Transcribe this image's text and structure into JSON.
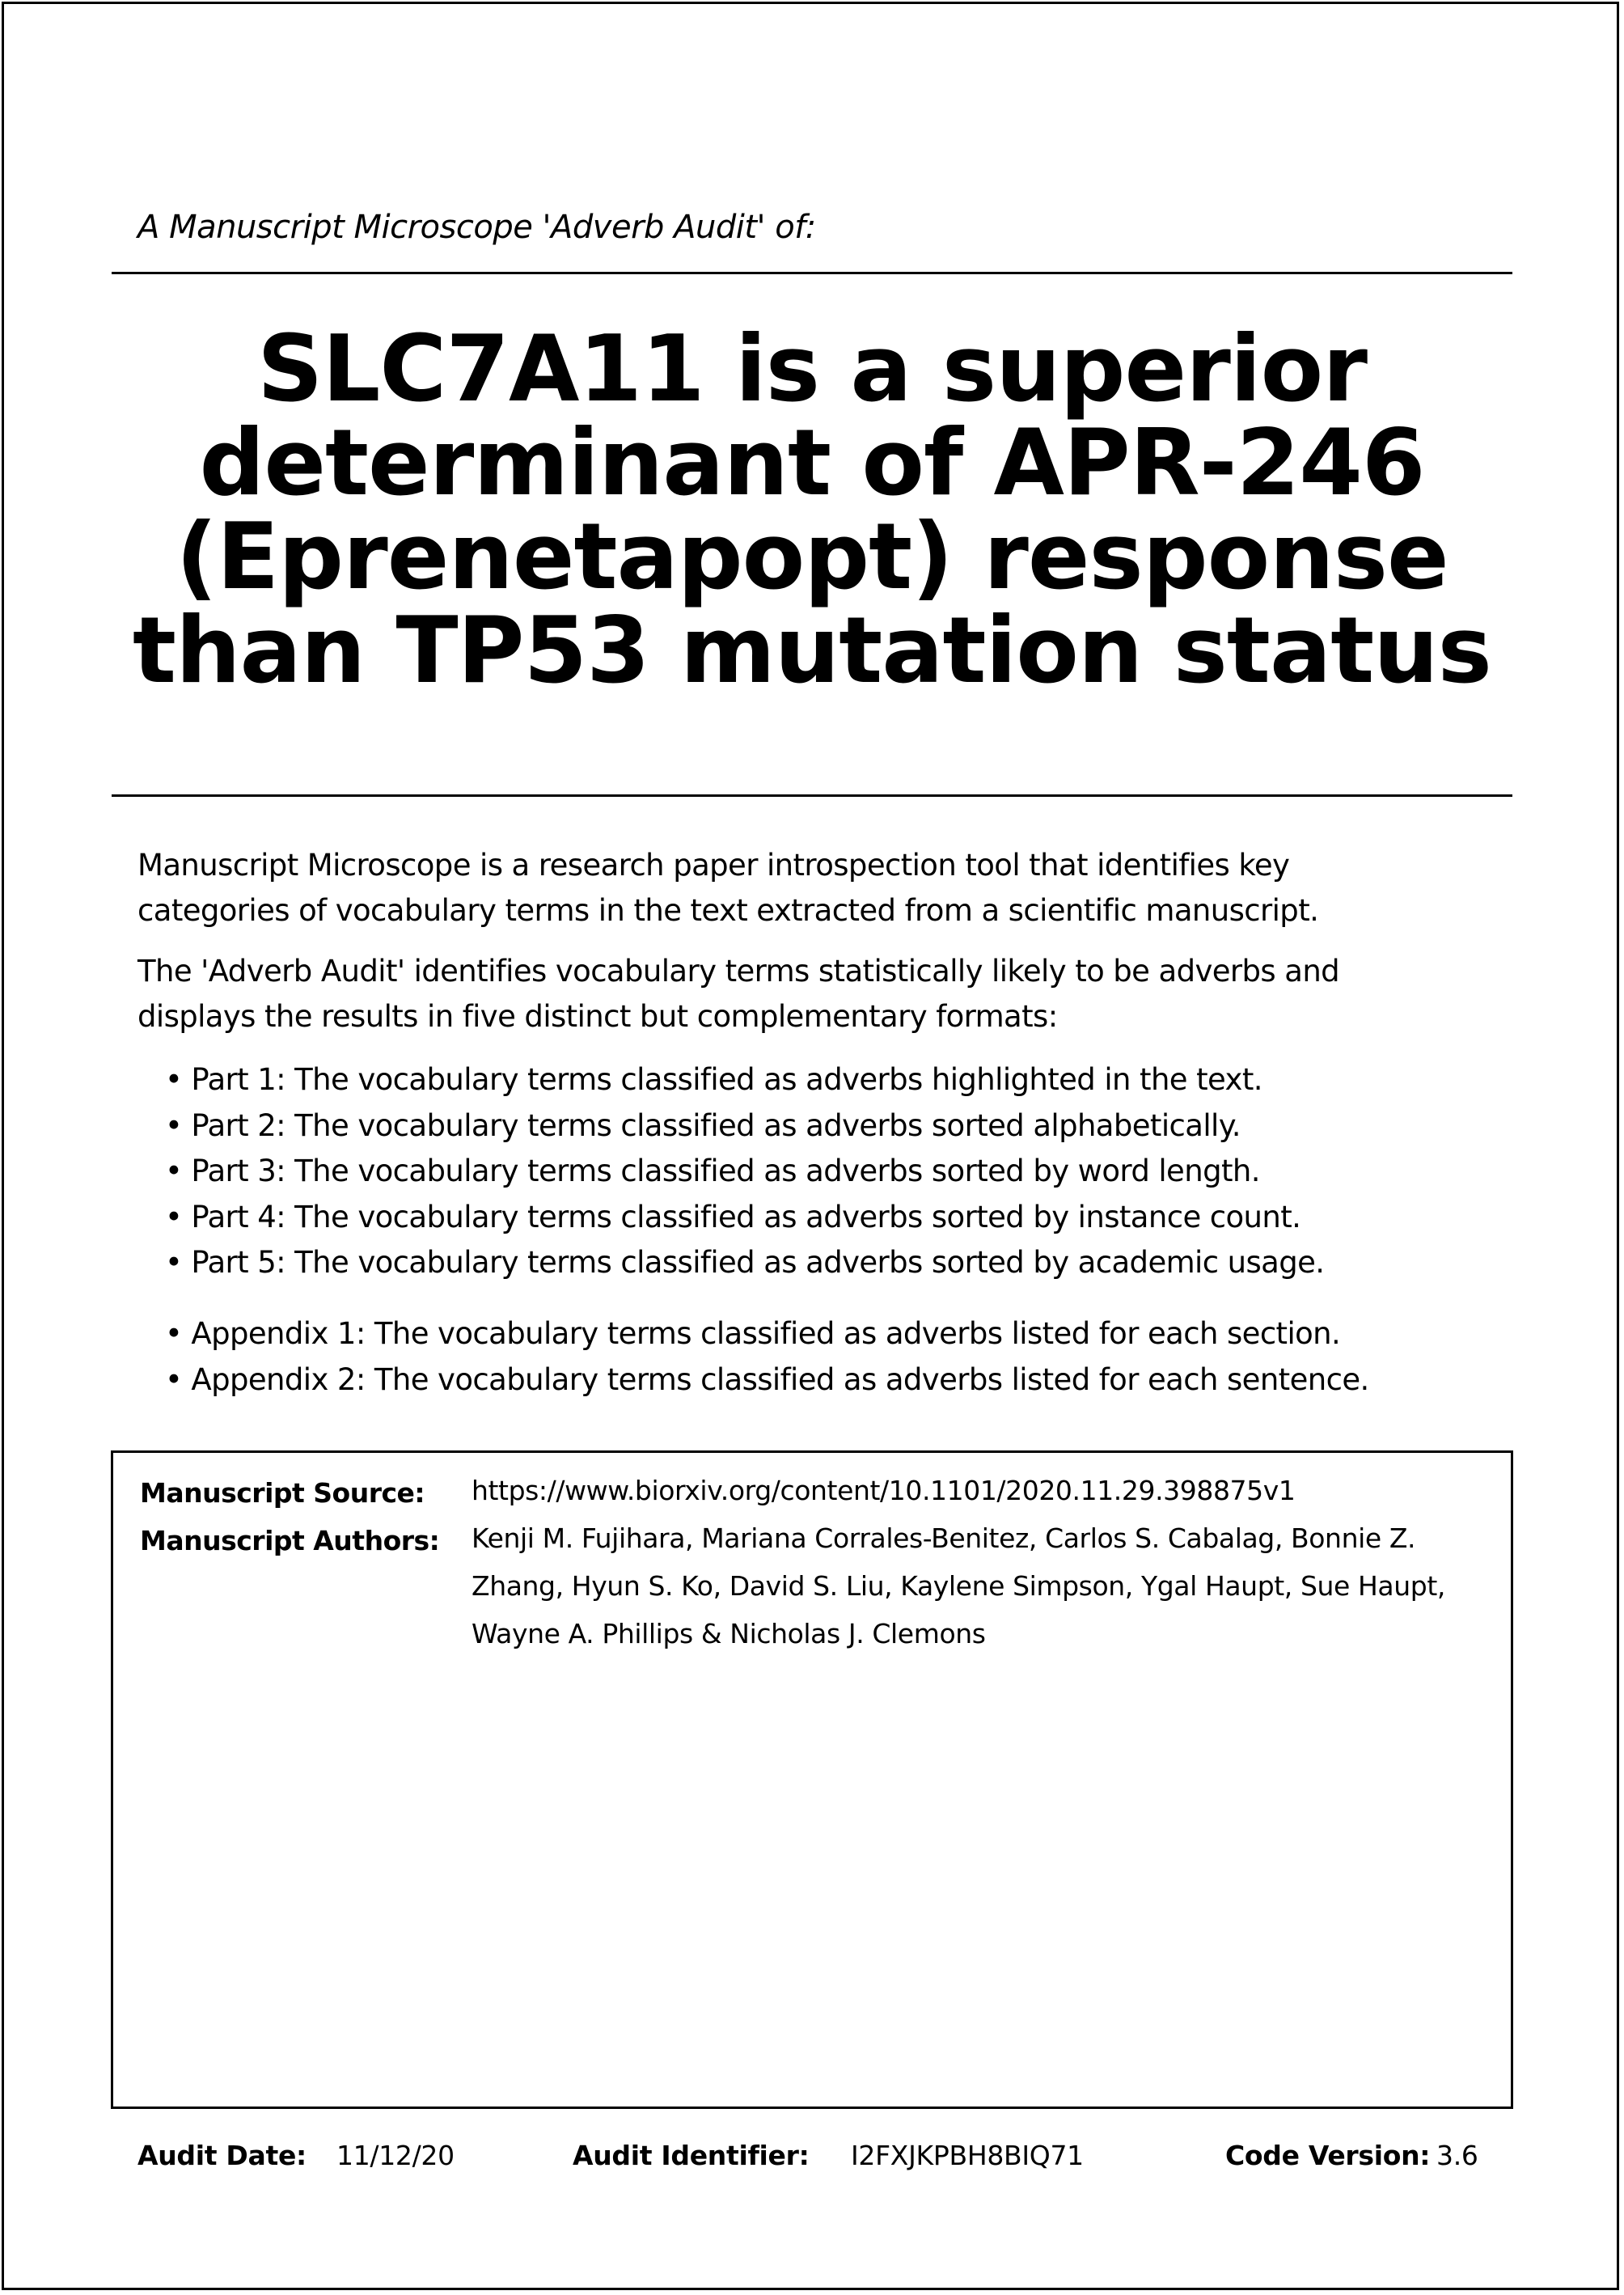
{
  "header": {
    "subtitle": "A Manuscript Microscope 'Adverb Audit' of:"
  },
  "title": {
    "lines": [
      "SLC7A11 is a superior",
      "determinant of APR-246",
      "(Eprenetapopt) response",
      "than TP53 mutation status"
    ]
  },
  "intro": {
    "paragraph1": [
      "Manuscript Microscope is a research paper introspection tool that identifies key",
      "categories of vocabulary terms in the text extracted from a scientific manuscript."
    ],
    "paragraph2": [
      "The 'Adverb Audit' identifies vocabulary terms statistically likely to be adverbs and",
      "displays the results in five distinct but complementary formats:"
    ]
  },
  "parts": [
    "Part 1: The vocabulary terms classified as adverbs highlighted in the text.",
    "Part 2: The vocabulary terms classified as adverbs sorted alphabetically.",
    "Part 3: The vocabulary terms classified as adverbs sorted by word length.",
    "Part 4: The vocabulary terms classified as adverbs sorted by instance count.",
    "Part 5: The vocabulary terms classified as adverbs sorted by academic usage."
  ],
  "appendices": [
    "Appendix 1: The vocabulary terms classified as adverbs listed for each section.",
    "Appendix 2: The vocabulary terms classified as adverbs listed for each sentence."
  ],
  "manuscript": {
    "source_label": "Manuscript Source:",
    "source_value": "https://www.biorxiv.org/content/10.1101/2020.11.29.398875v1",
    "authors_label": "Manuscript Authors:",
    "authors_lines": [
      "Kenji M. Fujihara, Mariana Corrales-Benitez, Carlos S. Cabalag, Bonnie Z.",
      "Zhang, Hyun S. Ko, David S. Liu, Kaylene Simpson, Ygal Haupt, Sue Haupt,",
      "Wayne A. Phillips & Nicholas J. Clemons"
    ]
  },
  "footer": {
    "date_label": "Audit Date:",
    "date_value": "11/12/20",
    "identifier_label": "Audit Identifier:",
    "identifier_value": "I2FXJKPBH8BIQ71",
    "code_label": "Code Version:",
    "code_value": "3.6"
  }
}
